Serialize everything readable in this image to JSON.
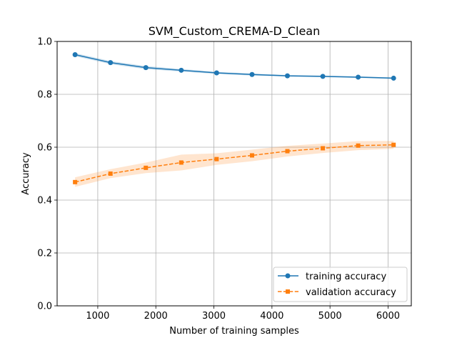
{
  "chart_data": {
    "type": "line",
    "title": "SVM_Custom_CREMA-D_Clean",
    "xlabel": "Number of training samples",
    "ylabel": "Accuracy",
    "xlim": [
      300,
      6400
    ],
    "ylim": [
      0.0,
      1.0
    ],
    "xticks": [
      1000,
      2000,
      3000,
      4000,
      5000,
      6000
    ],
    "yticks": [
      0.0,
      0.2,
      0.4,
      0.6,
      0.8,
      1.0
    ],
    "ytick_labels": [
      "0.0",
      "0.2",
      "0.4",
      "0.6",
      "0.8",
      "1.0"
    ],
    "grid": true,
    "legend_position": "lower right",
    "x": [
      609,
      1219,
      1828,
      2438,
      3047,
      3657,
      4266,
      4876,
      5485,
      6095
    ],
    "series": [
      {
        "name": "training accuracy",
        "color": "#1f77b4",
        "marker": "circle",
        "linestyle": "solid",
        "values": [
          0.95,
          0.92,
          0.901,
          0.891,
          0.881,
          0.875,
          0.87,
          0.868,
          0.865,
          0.861
        ],
        "band": [
          0.006,
          0.006,
          0.006,
          0.005,
          0.004,
          0.004,
          0.003,
          0.003,
          0.003,
          0.003
        ]
      },
      {
        "name": "validation accuracy",
        "color": "#ff7f0e",
        "marker": "square",
        "linestyle": "dashed",
        "values": [
          0.468,
          0.5,
          0.522,
          0.542,
          0.555,
          0.569,
          0.585,
          0.596,
          0.606,
          0.609
        ],
        "band": [
          0.018,
          0.017,
          0.02,
          0.03,
          0.022,
          0.022,
          0.02,
          0.018,
          0.017,
          0.015
        ]
      }
    ]
  }
}
